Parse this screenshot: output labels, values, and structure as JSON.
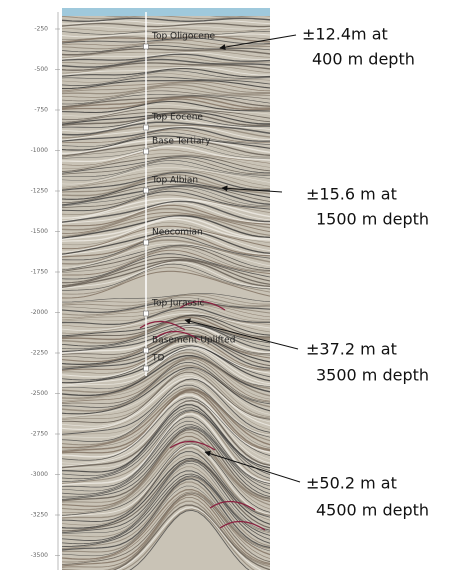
{
  "depth_axis": {
    "ticks": [
      "-250",
      "-500",
      "-750",
      "-1000",
      "-1250",
      "-1500",
      "-1750",
      "-2000",
      "-2250",
      "-2500",
      "-2750",
      "-3000",
      "-3250",
      "-3500"
    ]
  },
  "horizons": [
    "Top Oligocene",
    "Top Eocene",
    "Base Tertiary",
    "Top Albian",
    "Neocomian",
    "Top Jurassic",
    "Basement Uplifted",
    "TD"
  ],
  "annotations": [
    {
      "line1": "±12.4m at",
      "line2": "400 m depth"
    },
    {
      "line1": "±15.6 m at",
      "line2": "1500 m depth"
    },
    {
      "line1": "±37.2 m at",
      "line2": "3500 m depth"
    },
    {
      "line1": "±50.2 m at",
      "line2": "4500 m depth"
    }
  ]
}
